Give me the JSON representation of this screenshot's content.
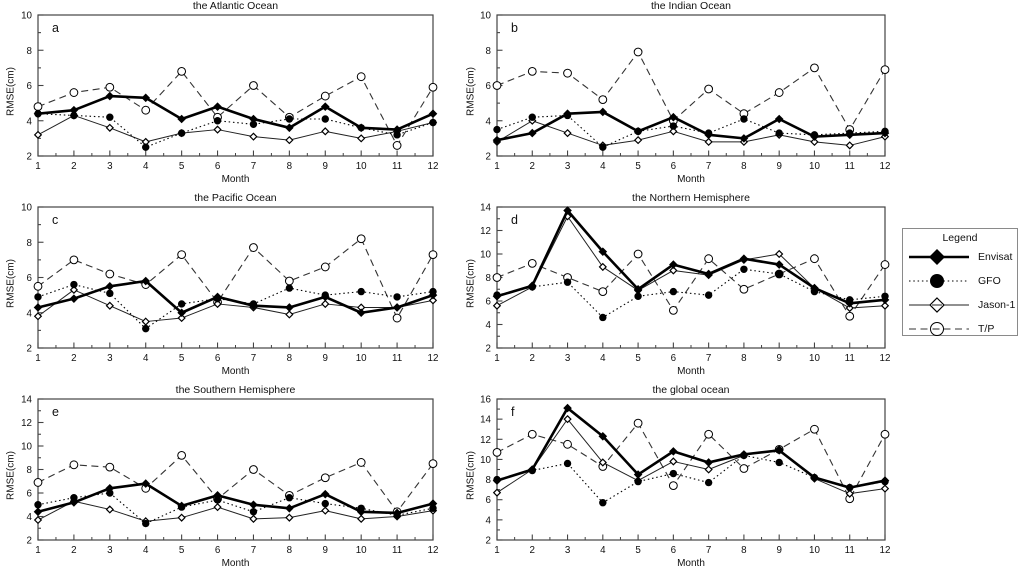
{
  "figure": {
    "legend": {
      "title": "Legend",
      "entries": [
        {
          "label": "Envisat",
          "line": "thick-solid",
          "marker": "filled-diamond"
        },
        {
          "label": "GFO",
          "line": "dotted",
          "marker": "filled-circle"
        },
        {
          "label": "Jason-1",
          "line": "thin-solid",
          "marker": "open-diamond"
        },
        {
          "label": "T/P",
          "line": "dashed",
          "marker": "open-circle"
        }
      ]
    },
    "colors": {
      "line": "#000000",
      "background": "#ffffff",
      "axis": "#444444"
    }
  },
  "chart_data": [
    {
      "type": "line",
      "letter": "a",
      "title": "the Atlantic Ocean",
      "xlabel": "Month",
      "ylabel": "RMSE(cm)",
      "x": [
        1,
        2,
        3,
        4,
        5,
        6,
        7,
        8,
        9,
        10,
        11,
        12
      ],
      "ylim": [
        2,
        10
      ],
      "yticks": [
        2,
        4,
        6,
        8,
        10
      ],
      "grid": false,
      "series": [
        {
          "name": "Envisat",
          "values": [
            4.4,
            4.6,
            5.4,
            5.3,
            4.1,
            4.8,
            4.1,
            3.6,
            4.8,
            3.6,
            3.5,
            4.4
          ]
        },
        {
          "name": "GFO",
          "values": [
            4.4,
            4.3,
            4.2,
            2.5,
            3.3,
            4.0,
            3.8,
            4.1,
            4.1,
            3.6,
            3.2,
            3.9
          ]
        },
        {
          "name": "Jason-1",
          "values": [
            3.2,
            4.3,
            3.6,
            2.8,
            3.3,
            3.5,
            3.1,
            2.9,
            3.4,
            3.0,
            3.4,
            3.9
          ]
        },
        {
          "name": "T/P",
          "values": [
            4.8,
            5.6,
            5.9,
            4.6,
            6.8,
            4.2,
            6.0,
            4.2,
            5.4,
            6.5,
            2.6,
            5.9
          ]
        }
      ]
    },
    {
      "type": "line",
      "letter": "b",
      "title": "the Indian Ocean",
      "xlabel": "Month",
      "ylabel": "RMSE(cm)",
      "x": [
        1,
        2,
        3,
        4,
        5,
        6,
        7,
        8,
        9,
        10,
        11,
        12
      ],
      "ylim": [
        2,
        10
      ],
      "yticks": [
        2,
        4,
        6,
        8,
        10
      ],
      "grid": false,
      "series": [
        {
          "name": "Envisat",
          "values": [
            2.9,
            3.3,
            4.4,
            4.5,
            3.4,
            4.2,
            3.2,
            3.0,
            4.1,
            3.1,
            3.2,
            3.3
          ]
        },
        {
          "name": "GFO",
          "values": [
            3.5,
            4.2,
            4.3,
            2.5,
            3.4,
            3.7,
            3.3,
            4.1,
            3.3,
            3.2,
            3.3,
            3.4
          ]
        },
        {
          "name": "Jason-1",
          "values": [
            2.8,
            4.0,
            3.3,
            2.6,
            2.9,
            3.4,
            2.8,
            2.8,
            3.2,
            2.8,
            2.6,
            3.1
          ]
        },
        {
          "name": "T/P",
          "values": [
            6.0,
            6.8,
            6.7,
            5.2,
            7.9,
            4.0,
            5.8,
            4.4,
            5.6,
            7.0,
            3.5,
            6.9
          ]
        }
      ]
    },
    {
      "type": "line",
      "letter": "c",
      "title": "the Pacific Ocean",
      "xlabel": "Month",
      "ylabel": "RMSE(cm)",
      "x": [
        1,
        2,
        3,
        4,
        5,
        6,
        7,
        8,
        9,
        10,
        11,
        12
      ],
      "ylim": [
        2,
        10
      ],
      "yticks": [
        2,
        4,
        6,
        8,
        10
      ],
      "grid": false,
      "series": [
        {
          "name": "Envisat",
          "values": [
            4.3,
            4.8,
            5.5,
            5.8,
            4.0,
            4.9,
            4.4,
            4.3,
            4.9,
            4.0,
            4.3,
            5.0
          ]
        },
        {
          "name": "GFO",
          "values": [
            4.9,
            5.6,
            5.1,
            3.1,
            4.5,
            4.8,
            4.5,
            5.4,
            5.0,
            5.2,
            4.9,
            5.2
          ]
        },
        {
          "name": "Jason-1",
          "values": [
            3.8,
            5.3,
            4.4,
            3.5,
            3.7,
            4.5,
            4.3,
            3.9,
            4.5,
            4.3,
            4.3,
            4.7
          ]
        },
        {
          "name": "T/P",
          "values": [
            5.5,
            7.0,
            6.2,
            5.6,
            7.3,
            4.6,
            7.7,
            5.8,
            6.6,
            8.2,
            3.7,
            7.3
          ]
        }
      ]
    },
    {
      "type": "line",
      "letter": "d",
      "title": "the Northern Hemisphere",
      "xlabel": "Month",
      "ylabel": "RMSE(cm)",
      "x": [
        1,
        2,
        3,
        4,
        5,
        6,
        7,
        8,
        9,
        10,
        11,
        12
      ],
      "ylim": [
        2,
        14
      ],
      "yticks": [
        2,
        4,
        6,
        8,
        10,
        12,
        14
      ],
      "grid": false,
      "series": [
        {
          "name": "Envisat",
          "values": [
            6.4,
            7.3,
            13.7,
            10.2,
            7.0,
            9.1,
            8.3,
            9.6,
            9.1,
            7.1,
            5.8,
            6.1
          ]
        },
        {
          "name": "GFO",
          "values": [
            6.5,
            7.2,
            7.6,
            4.6,
            6.4,
            6.8,
            6.5,
            8.7,
            8.3,
            6.8,
            6.1,
            6.4
          ]
        },
        {
          "name": "Jason-1",
          "values": [
            5.6,
            7.2,
            13.2,
            8.9,
            6.9,
            8.6,
            8.2,
            9.5,
            10.0,
            7.1,
            5.4,
            5.6
          ]
        },
        {
          "name": "T/P",
          "values": [
            8.0,
            9.2,
            8.0,
            6.8,
            10.0,
            5.2,
            9.6,
            7.0,
            8.3,
            9.6,
            4.7,
            9.1
          ]
        }
      ]
    },
    {
      "type": "line",
      "letter": "e",
      "title": "the Southern Hemisphere",
      "xlabel": "Month",
      "ylabel": "RMSE(cm)",
      "x": [
        1,
        2,
        3,
        4,
        5,
        6,
        7,
        8,
        9,
        10,
        11,
        12
      ],
      "ylim": [
        2,
        14
      ],
      "yticks": [
        2,
        4,
        6,
        8,
        10,
        12,
        14
      ],
      "grid": false,
      "series": [
        {
          "name": "Envisat",
          "values": [
            4.4,
            5.2,
            6.4,
            6.8,
            4.9,
            5.8,
            5.0,
            4.7,
            5.9,
            4.4,
            4.3,
            5.1
          ]
        },
        {
          "name": "GFO",
          "values": [
            5.0,
            5.6,
            6.0,
            3.4,
            4.8,
            5.4,
            4.4,
            5.6,
            5.1,
            4.7,
            4.1,
            4.7
          ]
        },
        {
          "name": "Jason-1",
          "values": [
            3.7,
            5.3,
            4.6,
            3.6,
            3.9,
            4.8,
            3.8,
            3.9,
            4.5,
            3.8,
            4.0,
            4.5
          ]
        },
        {
          "name": "T/P",
          "values": [
            6.9,
            8.4,
            8.2,
            6.4,
            9.2,
            5.5,
            8.0,
            5.8,
            7.3,
            8.6,
            4.4,
            8.5
          ]
        }
      ]
    },
    {
      "type": "line",
      "letter": "f",
      "title": "the global ocean",
      "xlabel": "Month",
      "ylabel": "RMSE(cm)",
      "x": [
        1,
        2,
        3,
        4,
        5,
        6,
        7,
        8,
        9,
        10,
        11,
        12
      ],
      "ylim": [
        2,
        16
      ],
      "yticks": [
        2,
        4,
        6,
        8,
        10,
        12,
        14,
        16
      ],
      "grid": false,
      "series": [
        {
          "name": "Envisat",
          "values": [
            7.9,
            9.0,
            15.1,
            12.3,
            8.5,
            10.8,
            9.7,
            10.5,
            10.9,
            8.2,
            7.2,
            7.9
          ]
        },
        {
          "name": "GFO",
          "values": [
            8.0,
            8.9,
            9.6,
            5.7,
            7.8,
            8.6,
            7.7,
            10.4,
            9.7,
            8.2,
            7.2,
            7.8
          ]
        },
        {
          "name": "Jason-1",
          "values": [
            6.7,
            9.0,
            14.0,
            9.7,
            7.9,
            9.8,
            9.0,
            10.4,
            11.0,
            8.1,
            6.6,
            7.1
          ]
        },
        {
          "name": "T/P",
          "values": [
            10.7,
            12.5,
            11.5,
            9.3,
            13.6,
            7.4,
            12.5,
            9.1,
            11.0,
            13.0,
            6.1,
            12.5
          ]
        }
      ]
    }
  ]
}
